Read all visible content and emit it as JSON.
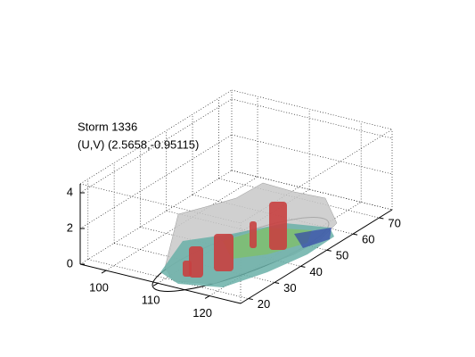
{
  "chart_data": {
    "type": "surface3d",
    "title": "Storm 1336",
    "subtitle": "(U,V) (2.5658,-0.95115)",
    "xlim": [
      95,
      126
    ],
    "xticks": [
      100,
      110,
      120
    ],
    "ylim": [
      17,
      75
    ],
    "yticks": [
      20,
      30,
      40,
      50,
      60,
      70
    ],
    "zlim": [
      0,
      4.5
    ],
    "zticks": [
      0,
      2,
      4
    ],
    "grid": true
  }
}
